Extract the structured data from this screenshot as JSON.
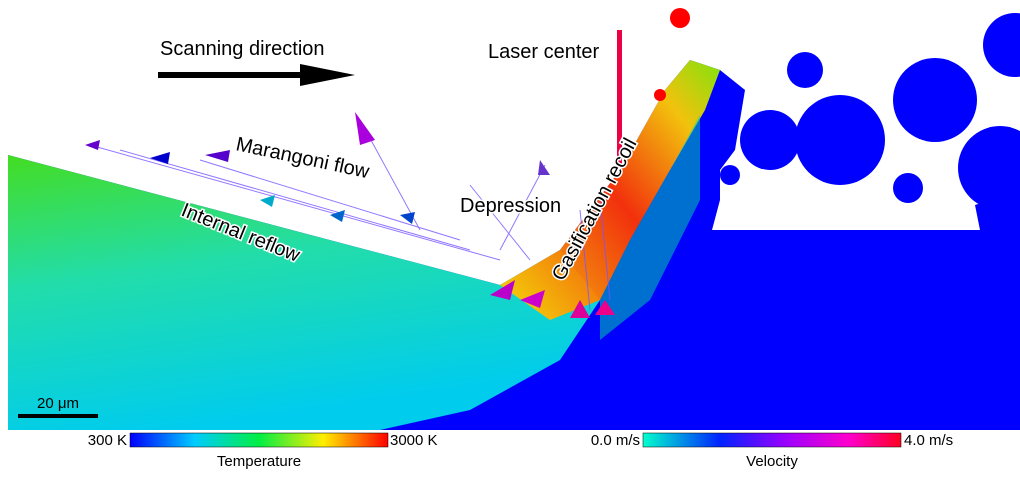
{
  "annotations": {
    "scanning_direction": "Scanning direction",
    "laser_center": "Laser center",
    "marangoni_flow": "Marangoni flow",
    "internal_reflow": "Internal reflow",
    "depression": "Depression",
    "gasification_recoil": "Gasification recoil",
    "scale_bar": "20 μm"
  },
  "temperature_bar": {
    "min_label": "300 K",
    "max_label": "3000 K",
    "title": "Temperature"
  },
  "velocity_bar": {
    "min_label": "0.0 m/s",
    "max_label": "4.0 m/s",
    "title": "Velocity"
  }
}
